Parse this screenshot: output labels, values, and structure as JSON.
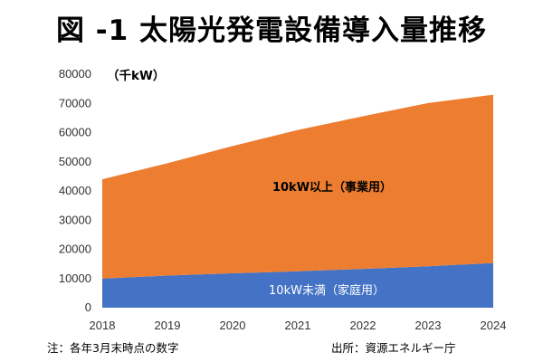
{
  "title": "図 -1 太陽光発電設備導入量推移",
  "footnote": "注：各年3月末時点の数字",
  "source": "出所：資源エネルギー庁",
  "chart_data": {
    "type": "area",
    "stacked": true,
    "x": [
      2018,
      2019,
      2020,
      2021,
      2022,
      2023,
      2024
    ],
    "unit_label": "（千kW）",
    "ylim": [
      0,
      80000
    ],
    "yticks": [
      0,
      10000,
      20000,
      30000,
      40000,
      50000,
      60000,
      70000,
      80000
    ],
    "grid": false,
    "series": [
      {
        "name": "10kW未満（家庭用）",
        "color": "#4472c4",
        "label_color": "#ffffff",
        "values": [
          10000,
          11000,
          11800,
          12500,
          13300,
          14200,
          15300
        ]
      },
      {
        "name": "10kW以上（事業用）",
        "color": "#ed7d31",
        "label_color": "#000000",
        "values": [
          34000,
          38500,
          43600,
          48400,
          52300,
          55900,
          57700
        ]
      }
    ]
  }
}
